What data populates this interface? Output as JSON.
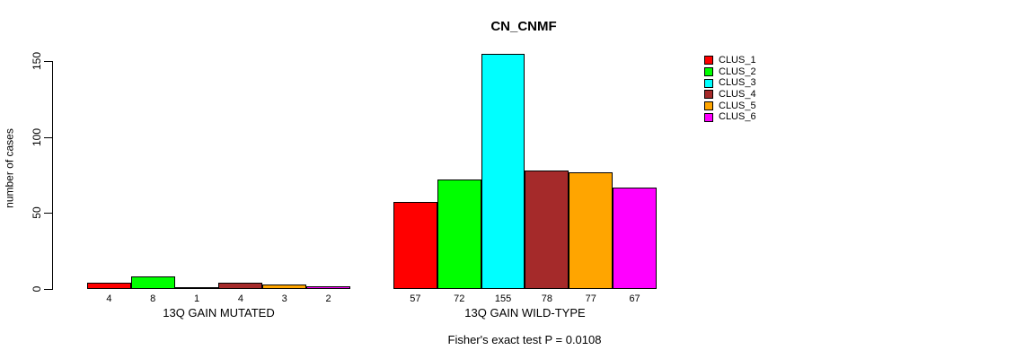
{
  "chart_data": {
    "type": "bar",
    "title": "CN_CNMF",
    "ylabel": "number of cases",
    "xlabel": "",
    "categories": [
      "13Q GAIN MUTATED",
      "13Q GAIN WILD-TYPE"
    ],
    "series": [
      {
        "name": "CLUS_1",
        "color": "#FF0000",
        "values": [
          4,
          57
        ]
      },
      {
        "name": "CLUS_2",
        "color": "#00FF00",
        "values": [
          8,
          72
        ]
      },
      {
        "name": "CLUS_3",
        "color": "#00FFFF",
        "values": [
          1,
          155
        ]
      },
      {
        "name": "CLUS_4",
        "color": "#A52A2A",
        "values": [
          4,
          78
        ]
      },
      {
        "name": "CLUS_5",
        "color": "#FFA500",
        "values": [
          3,
          77
        ]
      },
      {
        "name": "CLUS_6",
        "color": "#FF00FF",
        "values": [
          2,
          67
        ]
      }
    ],
    "yticks": [
      0,
      50,
      100,
      150
    ],
    "ylim": [
      0,
      155
    ],
    "bar_value_labels_shown": true,
    "grid": false,
    "legend_position": "right",
    "legend_entries": [
      "CLUS_1",
      "CLUS_2",
      "CLUS_3",
      "CLUS_4",
      "CLUS_5",
      "CLUS_6"
    ],
    "footnote": "Fisher's exact test P = 0.0108",
    "axis_color": "#000000",
    "background_color": "#FFFFFF"
  }
}
